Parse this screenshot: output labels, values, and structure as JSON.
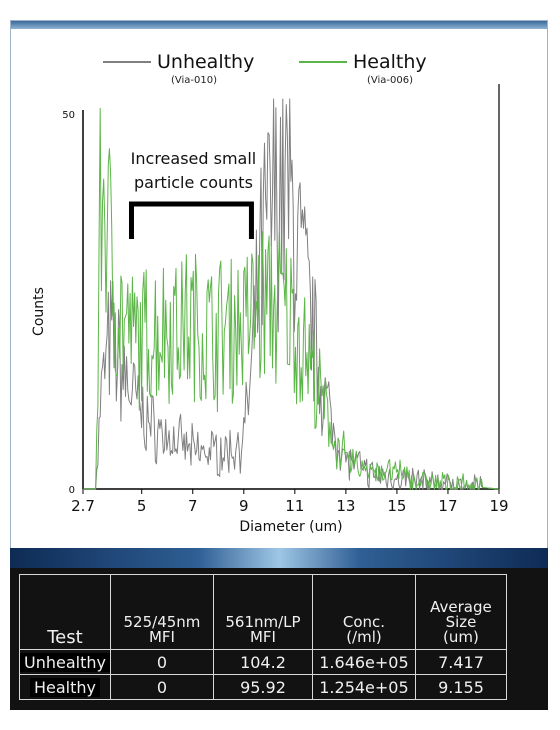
{
  "chart_data": {
    "type": "line",
    "title": "",
    "xlabel": "Diameter (um)",
    "ylabel": "Counts",
    "xlim": [
      2.7,
      19
    ],
    "ylim": [
      0,
      50
    ],
    "x_ticks": [
      "2.7",
      "5",
      "7",
      "9",
      "11",
      "13",
      "15",
      "17",
      "19"
    ],
    "y_ticks": [
      "0",
      "50"
    ],
    "legend_position": "top",
    "series": [
      {
        "name": "Unhealthy",
        "sublabel": "(Via-010)",
        "color": "#808080",
        "points": [
          [
            2.7,
            0
          ],
          [
            3.2,
            0
          ],
          [
            3.4,
            12
          ],
          [
            3.6,
            17
          ],
          [
            3.8,
            20
          ],
          [
            4.0,
            18
          ],
          [
            4.3,
            15
          ],
          [
            4.6,
            13
          ],
          [
            5.0,
            10
          ],
          [
            5.5,
            8
          ],
          [
            6.0,
            7
          ],
          [
            6.5,
            6
          ],
          [
            7.0,
            5
          ],
          [
            7.5,
            5
          ],
          [
            8.0,
            5
          ],
          [
            8.5,
            5
          ],
          [
            9.0,
            7
          ],
          [
            9.3,
            15
          ],
          [
            9.6,
            28
          ],
          [
            9.9,
            35
          ],
          [
            10.2,
            38
          ],
          [
            10.5,
            42
          ],
          [
            10.8,
            38
          ],
          [
            11.1,
            33
          ],
          [
            11.5,
            25
          ],
          [
            12.0,
            15
          ],
          [
            12.5,
            8
          ],
          [
            13.0,
            4
          ],
          [
            13.5,
            3
          ],
          [
            14.0,
            2
          ],
          [
            15.0,
            1.5
          ],
          [
            16.0,
            1
          ],
          [
            17.0,
            0.5
          ],
          [
            18.0,
            0.3
          ],
          [
            19.0,
            0
          ]
        ]
      },
      {
        "name": "Healthy",
        "sublabel": "(Via-006)",
        "color": "#5cb548",
        "points": [
          [
            2.7,
            0
          ],
          [
            3.2,
            0
          ],
          [
            3.4,
            40
          ],
          [
            3.6,
            38
          ],
          [
            3.8,
            30
          ],
          [
            4.0,
            25
          ],
          [
            4.3,
            22
          ],
          [
            4.6,
            20
          ],
          [
            5.0,
            20
          ],
          [
            5.5,
            21
          ],
          [
            6.0,
            22
          ],
          [
            6.5,
            22
          ],
          [
            7.0,
            22
          ],
          [
            7.5,
            21
          ],
          [
            8.0,
            21
          ],
          [
            8.5,
            22
          ],
          [
            9.0,
            22
          ],
          [
            9.5,
            24
          ],
          [
            10.0,
            25
          ],
          [
            10.5,
            24
          ],
          [
            11.0,
            22
          ],
          [
            11.5,
            18
          ],
          [
            12.0,
            12
          ],
          [
            12.5,
            7
          ],
          [
            13.0,
            4
          ],
          [
            13.5,
            3
          ],
          [
            14.0,
            2.5
          ],
          [
            15.0,
            2
          ],
          [
            16.0,
            1
          ],
          [
            17.0,
            0.5
          ],
          [
            18.0,
            0.3
          ],
          [
            19.0,
            0
          ]
        ]
      }
    ],
    "annotations": [
      {
        "text_lines": [
          "Increased small",
          "particle counts"
        ],
        "x_range": [
          4.6,
          9.3
        ]
      }
    ]
  },
  "table": {
    "headers": [
      {
        "key": "test",
        "lines": [
          "Test"
        ]
      },
      {
        "key": "mfi525",
        "lines": [
          "525/45nm",
          "MFI"
        ]
      },
      {
        "key": "mfi561",
        "lines": [
          "561nm/LP",
          "MFI"
        ]
      },
      {
        "key": "conc",
        "lines": [
          "Conc.",
          "(/ml)"
        ]
      },
      {
        "key": "avgsize",
        "lines": [
          "Average",
          "Size",
          "(um)"
        ]
      }
    ],
    "rows": [
      {
        "test": "Unhealthy",
        "mfi525": "0",
        "mfi561": "104.2",
        "conc": "1.646e+05",
        "avgsize": "7.417"
      },
      {
        "test": "Healthy",
        "mfi525": "0",
        "mfi561": "95.92",
        "conc": "1.254e+05",
        "avgsize": "9.155"
      }
    ]
  }
}
